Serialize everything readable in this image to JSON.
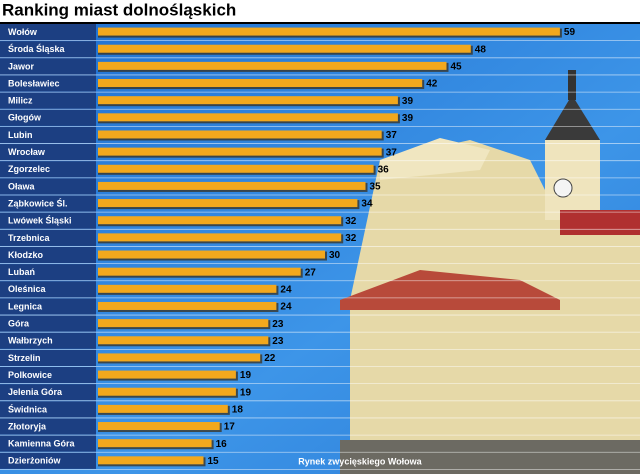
{
  "chart_data": {
    "type": "bar",
    "orientation": "horizontal",
    "title": "Ranking miast dolnośląskich",
    "caption": "Rynek zwycięskiego Wołowa",
    "categories": [
      "Wołów",
      "Środa Śląska",
      "Jawor",
      "Bolesławiec",
      "Milicz",
      "Głogów",
      "Lubin",
      "Wrocław",
      "Zgorzelec",
      "Oława",
      "Ząbkowice Śl.",
      "Lwówek Śląski",
      "Trzebnica",
      "Kłodzko",
      "Lubań",
      "Oleśnica",
      "Legnica",
      "Góra",
      "Wałbrzych",
      "Strzelin",
      "Polkowice",
      "Jelenia Góra",
      "Świdnica",
      "Złotoryja",
      "Kamienna Góra",
      "Dzierżoniów"
    ],
    "values": [
      59,
      48,
      45,
      42,
      39,
      39,
      37,
      37,
      36,
      35,
      34,
      32,
      32,
      30,
      27,
      24,
      24,
      23,
      23,
      22,
      19,
      19,
      18,
      17,
      16,
      15
    ],
    "color": "#f2a81d"
  }
}
